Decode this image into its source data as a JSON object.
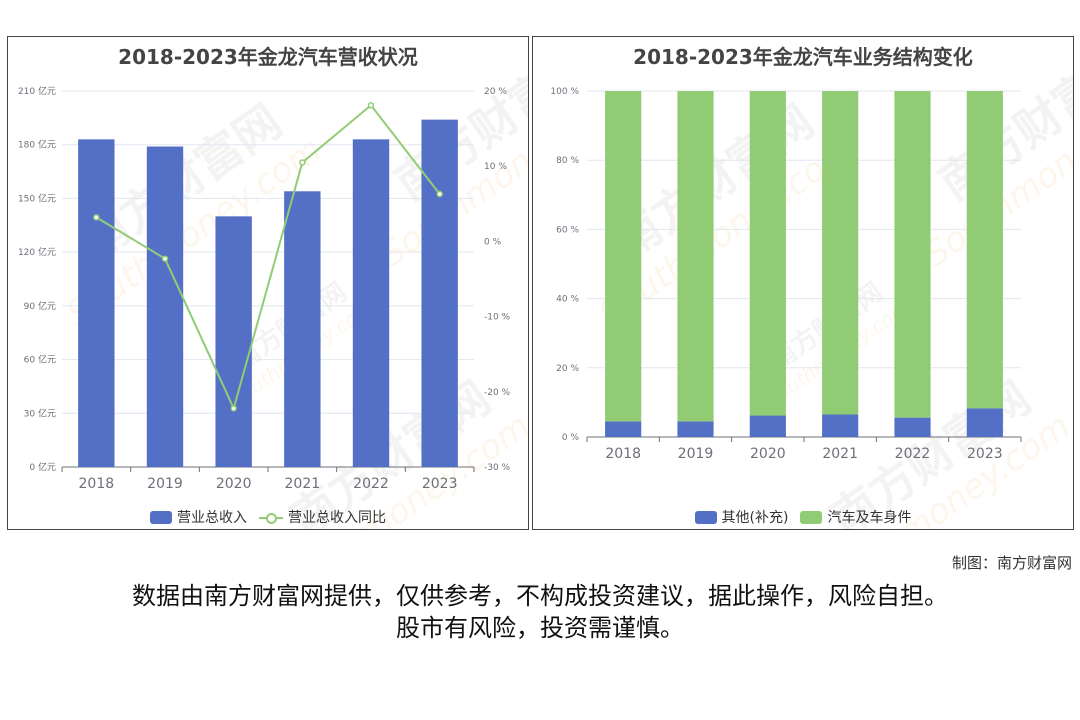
{
  "colors": {
    "bar_revenue": "#5470c6",
    "line_yoy": "#91cc75",
    "bar_other": "#5470c6",
    "bar_auto": "#91cc75",
    "axis": "#6e7079",
    "grid": "#e0e6f1"
  },
  "chart_data": [
    {
      "type": "bar",
      "title": "2018-2023年金龙汽车营收状况",
      "categories": [
        "2018",
        "2019",
        "2020",
        "2021",
        "2022",
        "2023"
      ],
      "y_left_ticks": [
        "0 亿元",
        "30 亿元",
        "60 亿元",
        "90 亿元",
        "120 亿元",
        "150 亿元",
        "180 亿元",
        "210 亿元"
      ],
      "y_right_ticks": [
        "-30 %",
        "-20 %",
        "-10 %",
        "0 %",
        "10 %",
        "20 %"
      ],
      "ylim_left": [
        0,
        210
      ],
      "ylim_right": [
        -30,
        20
      ],
      "series": [
        {
          "name": "营业总收入",
          "type": "bar",
          "axis": "left",
          "values": [
            183,
            179,
            140,
            154,
            183,
            194
          ]
        },
        {
          "name": "营业总收入同比",
          "type": "line",
          "axis": "right",
          "values": [
            3.2,
            -2.3,
            -22.2,
            10.5,
            18.1,
            6.3
          ]
        }
      ],
      "legend_position": "bottom",
      "grid": true
    },
    {
      "type": "bar",
      "stacked": true,
      "title": "2018-2023年金龙汽车业务结构变化",
      "categories": [
        "2018",
        "2019",
        "2020",
        "2021",
        "2022",
        "2023"
      ],
      "y_ticks": [
        "0 %",
        "20 %",
        "40 %",
        "60 %",
        "80 %",
        "100 %"
      ],
      "ylim": [
        0,
        100
      ],
      "series": [
        {
          "name": "其他(补充)",
          "values": [
            4.5,
            4.5,
            6.2,
            6.5,
            5.6,
            8.3
          ]
        },
        {
          "name": "汽车及车身件",
          "values": [
            95.5,
            95.5,
            93.8,
            93.5,
            94.4,
            91.7
          ]
        }
      ],
      "legend_position": "bottom",
      "grid": true
    }
  ],
  "watermark": {
    "cn": "南方财富网",
    "en": "Southmoney.com"
  },
  "credit": "制图：南方财富网",
  "disclaimer": {
    "line1": "数据由南方财富网提供，仅供参考，不构成投资建议，据此操作，风险自担。",
    "line2": "股市有风险，投资需谨慎。"
  }
}
